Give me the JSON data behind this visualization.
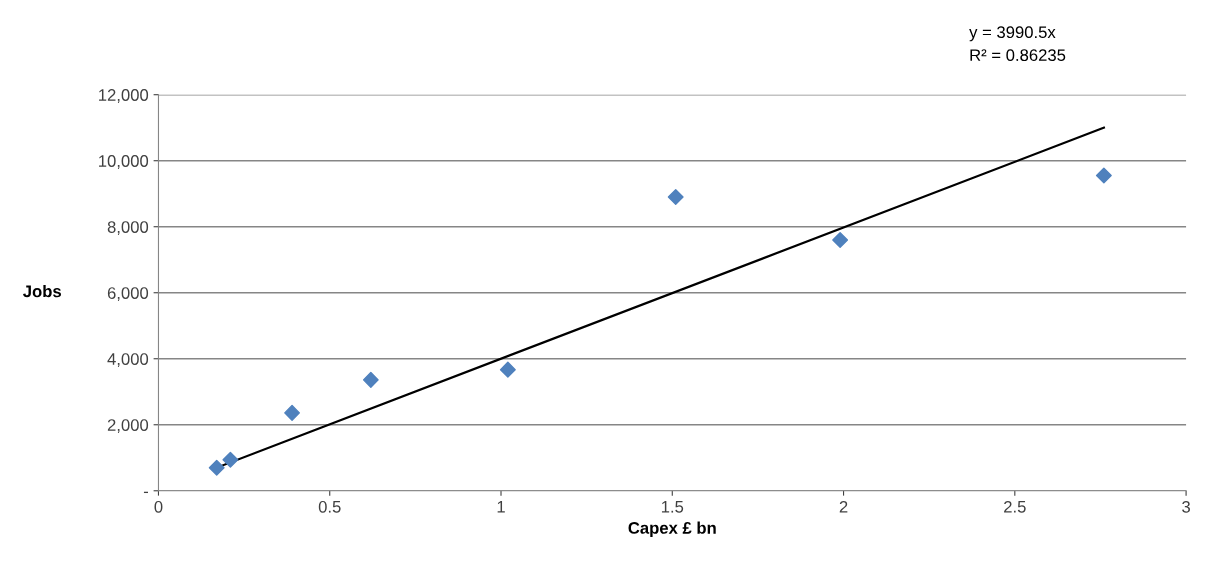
{
  "chart_data": {
    "type": "scatter",
    "xlabel": "Capex £ bn",
    "ylabel": "Jobs",
    "xlim": [
      0,
      3
    ],
    "xticks": [
      0,
      0.5,
      1,
      1.5,
      2,
      2.5,
      3
    ],
    "ylim": [
      0,
      12000
    ],
    "yticks": [
      {
        "value": 0,
        "label": "-"
      },
      {
        "value": 2000,
        "label": "2,000"
      },
      {
        "value": 4000,
        "label": "4,000"
      },
      {
        "value": 6000,
        "label": "6,000"
      },
      {
        "value": 8000,
        "label": "8,000"
      },
      {
        "value": 10000,
        "label": "10,000"
      },
      {
        "value": 12000,
        "label": "12,000"
      }
    ],
    "grid": "y",
    "legend": false,
    "marker": "diamond",
    "series": [
      {
        "color": "#4f81bd",
        "x": [
          0.17,
          0.21,
          0.39,
          0.62,
          1.02,
          1.51,
          1.99,
          2.76
        ],
        "values": [
          700,
          940,
          2360,
          3360,
          3670,
          8900,
          7600,
          9550
        ]
      },
      {
        "type": "line",
        "color": "#000000",
        "marker": "none",
        "line_style": "solid",
        "x": [
          0.17,
          2.76
        ],
        "values": [
          700,
          11000
        ]
      }
    ],
    "annotations": [
      "y = 3990.5x",
      "R² = 0.86235"
    ]
  }
}
